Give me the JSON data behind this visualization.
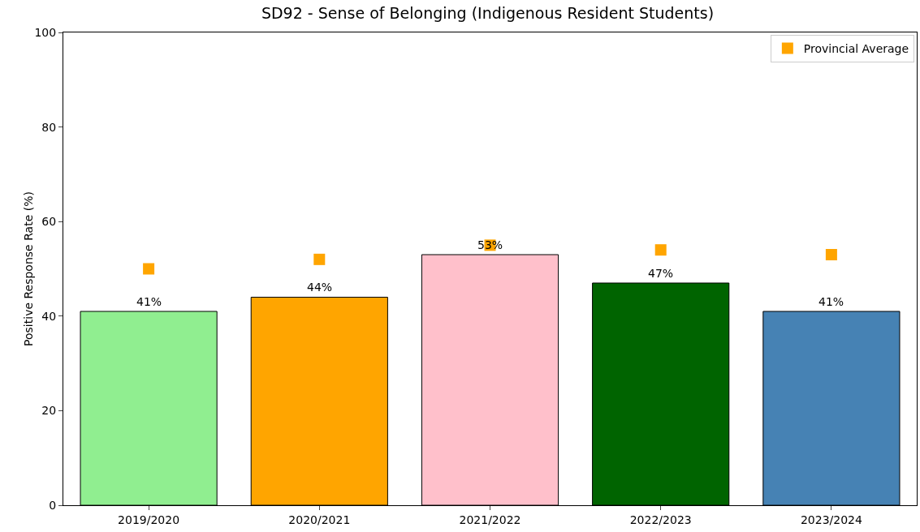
{
  "chart_data": {
    "type": "bar",
    "title": "SD92 - Sense of Belonging (Indigenous Resident Students)",
    "ylabel": "Positive Response Rate (%)",
    "categories": [
      "2019/2020",
      "2020/2021",
      "2021/2022",
      "2022/2023",
      "2023/2024"
    ],
    "series": [
      {
        "colors": [
          "#90ee90",
          "#ffa500",
          "#ffc0cb",
          "#006400",
          "#4682b4"
        ],
        "values": [
          41,
          44,
          53,
          47,
          41
        ],
        "value_labels": [
          "41%",
          "44%",
          "53%",
          "47%",
          "41%"
        ]
      },
      {
        "type": "scatter",
        "name": "Provincial Average",
        "color": "#ffa500",
        "marker": "square",
        "x": [
          "2019/2020",
          "2020/2021",
          "2021/2022",
          "2022/2023",
          "2023/2024"
        ],
        "values": [
          50,
          52,
          55,
          54,
          53
        ]
      }
    ],
    "ylim": [
      0,
      100
    ],
    "yticks": [
      0,
      20,
      40,
      60,
      80,
      100
    ],
    "grid": false,
    "legend": "top right"
  }
}
